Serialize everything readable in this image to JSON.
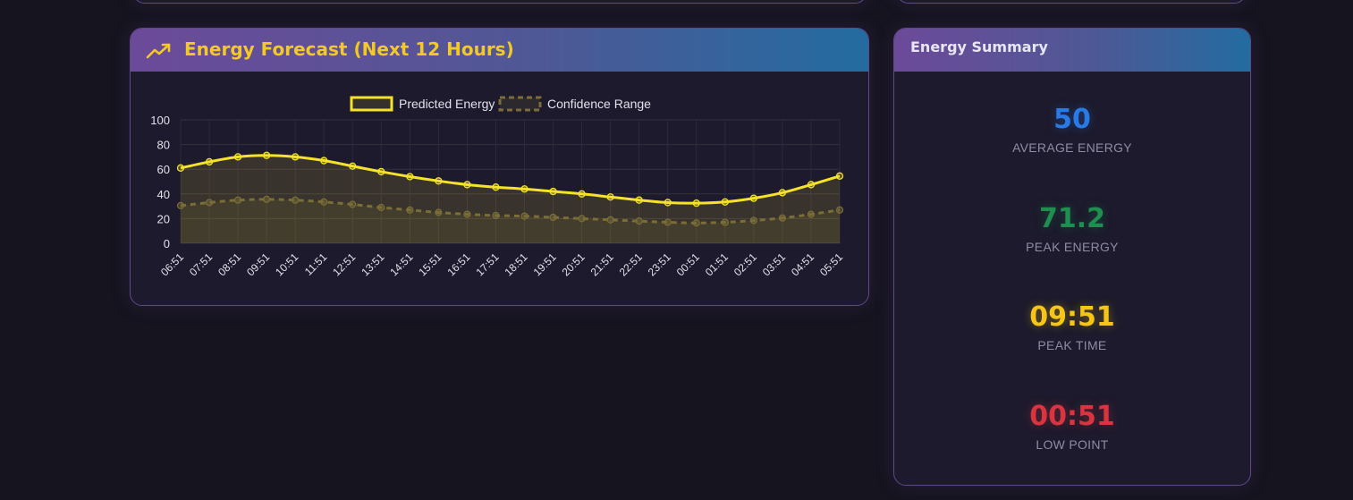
{
  "forecast_card": {
    "title": "Energy Forecast (Next 12 Hours)",
    "icon": "trending-up-icon"
  },
  "summary_card": {
    "title": "Energy Summary",
    "stats": [
      {
        "value": "50",
        "label": "AVERAGE ENERGY",
        "color": "#2979e6"
      },
      {
        "value": "71.2",
        "label": "PEAK ENERGY",
        "color": "#1f8f4f"
      },
      {
        "value": "09:51",
        "label": "PEAK TIME",
        "color": "#f5c518"
      },
      {
        "value": "00:51",
        "label": "LOW POINT",
        "color": "#d9343f"
      }
    ]
  },
  "chart_data": {
    "type": "line",
    "x": [
      "06:51",
      "07:51",
      "08:51",
      "09:51",
      "10:51",
      "11:51",
      "12:51",
      "13:51",
      "14:51",
      "15:51",
      "16:51",
      "17:51",
      "18:51",
      "19:51",
      "20:51",
      "21:51",
      "22:51",
      "23:51",
      "00:51",
      "01:51",
      "02:51",
      "03:51",
      "04:51",
      "05:51"
    ],
    "series": [
      {
        "name": "Predicted Energy",
        "color": "#f5e22b",
        "style": "solid",
        "fill": true,
        "values": [
          61,
          66,
          70,
          71.2,
          70,
          67,
          62.5,
          58,
          54,
          50.5,
          47.5,
          45.5,
          44,
          42,
          40,
          37.5,
          35,
          33,
          32.5,
          33.5,
          36.5,
          41,
          47.5,
          54.5
        ]
      },
      {
        "name": "Confidence Range",
        "color": "#7a6d37",
        "style": "dashed",
        "fill": true,
        "values": [
          30.5,
          33,
          35,
          35.6,
          35,
          33.5,
          31.5,
          29,
          27,
          25,
          23.5,
          22.5,
          22,
          21,
          20,
          19,
          18,
          17,
          16.5,
          17,
          18.5,
          20.5,
          23.5,
          27
        ]
      }
    ],
    "ylim": [
      0,
      100
    ],
    "yticks": [
      0,
      20,
      40,
      60,
      80,
      100
    ],
    "grid": true,
    "legend_position": "top-center"
  }
}
